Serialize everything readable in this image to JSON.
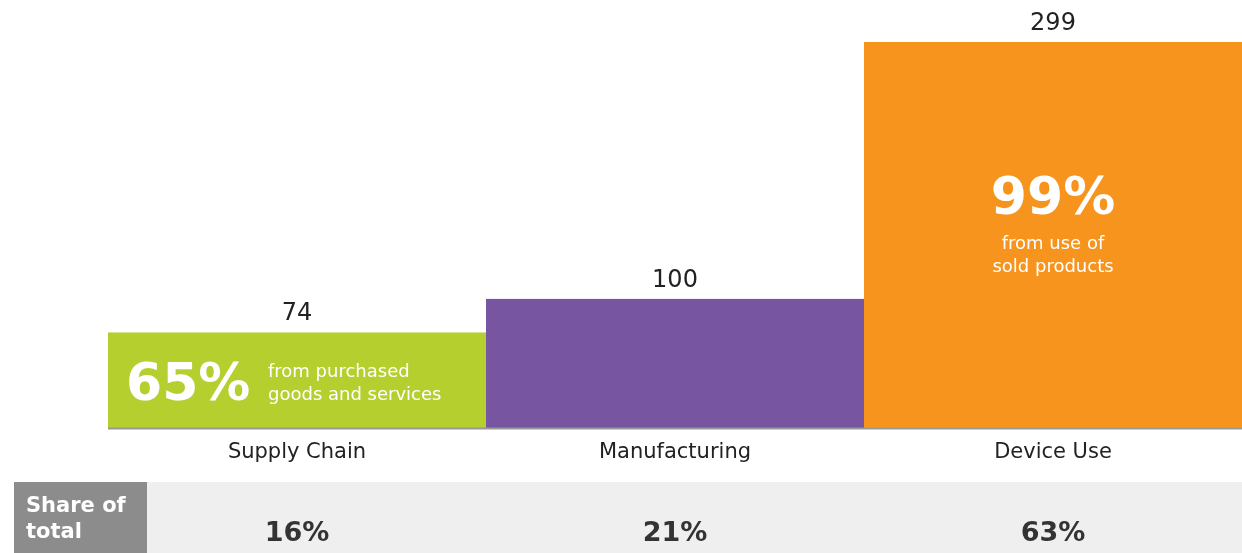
{
  "chart_data": {
    "type": "bar",
    "categories": [
      "Supply Chain",
      "Manufacturing",
      "Device Use"
    ],
    "values": [
      74,
      100,
      299
    ],
    "colors": [
      "#b5cf2f",
      "#7755a0",
      "#f7941d"
    ],
    "data_labels": true,
    "annotations": [
      "65%",
      "from purchased goods and services",
      "99%",
      "from use of sold products",
      "Share of total",
      "16%",
      "21%",
      "63%"
    ]
  }
}
